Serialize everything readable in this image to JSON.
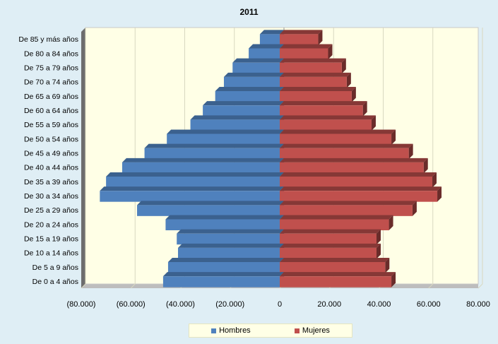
{
  "chart_data": {
    "type": "bar",
    "title": "2011",
    "xlabel": "",
    "ylabel": "",
    "xlim": [
      -80000,
      80000
    ],
    "x_ticks": [
      -80000,
      -60000,
      -40000,
      -20000,
      0,
      20000,
      40000,
      60000,
      80000
    ],
    "x_tick_labels": [
      "(80.000)",
      "(60.000)",
      "(40.000)",
      "(20.000)",
      "0",
      "20.000",
      "40.000",
      "60.000",
      "80.000"
    ],
    "grid": true,
    "legend_position": "bottom",
    "categories": [
      "De 0 a 4 años",
      "De 5 a 9 años",
      "De 10 a 14 años",
      "De 15 a 19 años",
      "De 20 a 24 años",
      "De 25 a 29 años",
      "De 30 a 34 años",
      "De 35 a 39 años",
      "De 40 a 44 años",
      "De 45 a 49 años",
      "De 50 a 54 años",
      "De 55 a 59 años",
      "De 60 a 64 años",
      "De 65 a 69 años",
      "De 70 a 74 años",
      "De 75 a 79 años",
      "De 80 a 84 años",
      "De 85 y más años"
    ],
    "series": [
      {
        "name": "Hombres",
        "color": "#4f81bd",
        "values": [
          -47000,
          -45000,
          -41000,
          -41500,
          -46000,
          -57500,
          -72500,
          -70000,
          -63500,
          -54500,
          -45500,
          -36000,
          -31000,
          -26000,
          -22500,
          -19000,
          -12500,
          -8000
        ]
      },
      {
        "name": "Mujeres",
        "color": "#c0504d",
        "values": [
          45000,
          42500,
          39000,
          39000,
          44000,
          53500,
          63500,
          61500,
          58000,
          52000,
          45000,
          37000,
          33500,
          29000,
          27000,
          25000,
          19500,
          15500
        ]
      }
    ]
  }
}
